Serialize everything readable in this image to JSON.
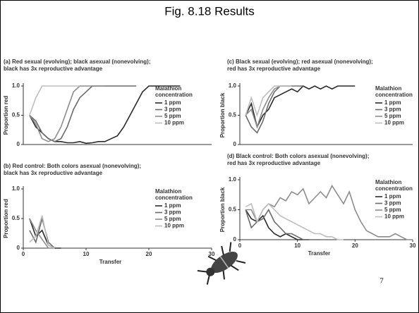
{
  "slide": {
    "title": "Fig. 8.18  Results",
    "page_number": "7"
  },
  "chart_data": [
    {
      "type": "line",
      "title": [
        "(a) Red sexual (evolving); black asexual (nonevolving);",
        "black has 3x reproductive advantage"
      ],
      "y_label": "Proportion red",
      "legend_title": [
        "Malathion",
        "concentration"
      ],
      "xlim": [
        0,
        30
      ],
      "ylim": [
        0,
        1
      ],
      "yticks": [
        0,
        0.5,
        {
          "value": 1,
          "label": "1.0"
        }
      ],
      "x": [
        1,
        2,
        3,
        4,
        5,
        6,
        7,
        8,
        9,
        10,
        11,
        12,
        13,
        14,
        15,
        16,
        17,
        18,
        19,
        20,
        21,
        22,
        23,
        24,
        25,
        26,
        27,
        28,
        29,
        30
      ],
      "series": [
        {
          "name": "1 ppm",
          "color": "#2a2a2a",
          "values": [
            0.5,
            0.3,
            0.2,
            0.1,
            0.05,
            0.05,
            0.03,
            0.03,
            0.05,
            0.02,
            0.03,
            0.05,
            0.05,
            0.1,
            0.15,
            0.3,
            0.5,
            0.7,
            0.9,
            1,
            1,
            1,
            1,
            1,
            1,
            null,
            null,
            null,
            null,
            null
          ]
        },
        {
          "name": "3 ppm",
          "color": "#6a6a6a",
          "values": [
            0.5,
            0.4,
            0.2,
            0.1,
            0.05,
            0.1,
            0.3,
            0.6,
            0.8,
            0.9,
            1,
            1,
            1,
            1,
            1,
            1,
            1,
            1,
            null,
            null,
            null,
            null,
            null,
            null,
            null,
            null,
            null,
            null,
            null,
            null
          ]
        },
        {
          "name": "5 ppm",
          "color": "#8c8c8c",
          "values": [
            0.5,
            0.35,
            0.1,
            0.05,
            0.1,
            0.3,
            0.6,
            0.9,
            1,
            1,
            1,
            1,
            1,
            null,
            null,
            null,
            null,
            null,
            null,
            null,
            null,
            null,
            null,
            null,
            null,
            null,
            null,
            null,
            null,
            null
          ]
        },
        {
          "name": "10 ppm",
          "color": "#bdbdbd",
          "values": [
            0.5,
            0.8,
            1,
            1,
            1,
            1,
            1,
            1,
            1,
            null,
            null,
            null,
            null,
            null,
            null,
            null,
            null,
            null,
            null,
            null,
            null,
            null,
            null,
            null,
            null,
            null,
            null,
            null,
            null,
            null
          ]
        }
      ]
    },
    {
      "type": "line",
      "title": [
        "(b) Red control: Both colors asexual (nonevolving);",
        "black has 3x reproductive advantage"
      ],
      "y_label": "Proportion red",
      "x_label": "Transfer",
      "legend_title": [
        "Malathion",
        "concentration"
      ],
      "xlim": [
        0,
        30
      ],
      "ylim": [
        0,
        1
      ],
      "yticks": [
        0,
        0.5,
        {
          "value": 1,
          "label": "1.0"
        }
      ],
      "xticks": [
        0,
        10,
        20,
        30
      ],
      "x": [
        1,
        2,
        3,
        4,
        5,
        6,
        7,
        8,
        9,
        10,
        11,
        12,
        13,
        14,
        15,
        16,
        17,
        18,
        19,
        20,
        21,
        22,
        23,
        24,
        25,
        26,
        27,
        28,
        29,
        30
      ],
      "series": [
        {
          "name": "1 ppm",
          "color": "#2a2a2a",
          "values": [
            0.5,
            0.2,
            0.3,
            0.05,
            0,
            0,
            null,
            null,
            null,
            null,
            null,
            null,
            null,
            null,
            null,
            null,
            null,
            null,
            null,
            null,
            null,
            null,
            null,
            null,
            null,
            null,
            null,
            null,
            null,
            null
          ]
        },
        {
          "name": "3 ppm",
          "color": "#6a6a6a",
          "values": [
            0.3,
            0.1,
            0.5,
            0.1,
            0,
            null,
            null,
            null,
            null,
            null,
            null,
            null,
            null,
            null,
            null,
            null,
            null,
            null,
            null,
            null,
            null,
            null,
            null,
            null,
            null,
            null,
            null,
            null,
            null,
            null
          ]
        },
        {
          "name": "5 ppm",
          "color": "#8c8c8c",
          "values": [
            0.5,
            0.3,
            0.15,
            0,
            0,
            null,
            null,
            null,
            null,
            null,
            null,
            null,
            null,
            null,
            null,
            null,
            null,
            null,
            null,
            null,
            null,
            null,
            null,
            null,
            null,
            null,
            null,
            null,
            null,
            null
          ]
        },
        {
          "name": "10 ppm",
          "color": "#bdbdbd",
          "values": [
            0.1,
            0.2,
            0.55,
            0.05,
            0,
            null,
            null,
            null,
            null,
            null,
            null,
            null,
            null,
            null,
            null,
            null,
            null,
            null,
            null,
            null,
            null,
            null,
            null,
            null,
            null,
            null,
            null,
            null,
            null,
            null
          ]
        }
      ]
    },
    {
      "type": "line",
      "title": [
        "(c) Black sexual (evolving); red asexual (nonevolving);",
        "red has 3x reproductive advantage"
      ],
      "y_label": "Proportion black",
      "legend_title": [
        "Malathion",
        "concentration"
      ],
      "xlim": [
        0,
        30
      ],
      "ylim": [
        0,
        1
      ],
      "yticks": [
        0,
        0.5,
        {
          "value": 1,
          "label": "1.0"
        }
      ],
      "x": [
        1,
        2,
        3,
        4,
        5,
        6,
        7,
        8,
        9,
        10,
        11,
        12,
        13,
        14,
        15,
        16,
        17,
        18,
        19,
        20,
        21,
        22,
        23,
        24,
        25,
        26,
        27,
        28,
        29,
        30
      ],
      "series": [
        {
          "name": "1 ppm",
          "color": "#2a2a2a",
          "values": [
            0.5,
            0.7,
            0.3,
            0.5,
            0.6,
            0.8,
            0.85,
            0.9,
            0.95,
            0.9,
            1,
            0.95,
            1,
            0.95,
            1,
            0.95,
            1,
            1,
            1,
            1,
            null,
            null,
            null,
            null,
            null,
            null,
            null,
            null,
            null,
            null
          ]
        },
        {
          "name": "3 ppm",
          "color": "#6a6a6a",
          "values": [
            0.5,
            0.3,
            0.2,
            0.4,
            0.7,
            0.9,
            1,
            1,
            1,
            1,
            1,
            null,
            null,
            null,
            null,
            null,
            null,
            null,
            null,
            null,
            null,
            null,
            null,
            null,
            null,
            null,
            null,
            null,
            null,
            null
          ]
        },
        {
          "name": "5 ppm",
          "color": "#8c8c8c",
          "values": [
            0.5,
            0.6,
            0.3,
            0.6,
            0.8,
            0.95,
            1,
            1,
            1,
            1,
            null,
            null,
            null,
            null,
            null,
            null,
            null,
            null,
            null,
            null,
            null,
            null,
            null,
            null,
            null,
            null,
            null,
            null,
            null,
            null
          ]
        },
        {
          "name": "10 ppm",
          "color": "#bdbdbd",
          "values": [
            0.5,
            0.8,
            0.5,
            0.8,
            0.9,
            1,
            1,
            1,
            1,
            null,
            null,
            null,
            null,
            null,
            null,
            null,
            null,
            null,
            null,
            null,
            null,
            null,
            null,
            null,
            null,
            null,
            null,
            null,
            null,
            null
          ]
        }
      ]
    },
    {
      "type": "line",
      "title": [
        "(d) Black control: Both colors asexual (nonevolving);",
        "red has 3x reproductive advantage"
      ],
      "y_label": "Proportion black",
      "x_label": "Transfer",
      "legend_title": [
        "Malathion",
        "concentration"
      ],
      "xlim": [
        0,
        30
      ],
      "ylim": [
        0,
        1
      ],
      "yticks": [
        0,
        0.5,
        {
          "value": 1,
          "label": "1.0"
        }
      ],
      "xticks": [
        0,
        10,
        20,
        30
      ],
      "x": [
        1,
        2,
        3,
        4,
        5,
        6,
        7,
        8,
        9,
        10,
        11,
        12,
        13,
        14,
        15,
        16,
        17,
        18,
        19,
        20,
        21,
        22,
        23,
        24,
        25,
        26,
        27,
        28,
        29,
        30
      ],
      "series": [
        {
          "name": "1 ppm",
          "color": "#2a2a2a",
          "values": [
            0.5,
            0.35,
            0.3,
            0.4,
            0.2,
            0.1,
            0.05,
            0.1,
            0.05,
            0,
            0,
            0,
            null,
            null,
            null,
            null,
            null,
            null,
            null,
            null,
            null,
            null,
            null,
            null,
            null,
            null,
            null,
            null,
            null,
            null
          ]
        },
        {
          "name": "3 ppm",
          "color": "#6a6a6a",
          "values": [
            0.5,
            0.2,
            0.3,
            0.35,
            0.5,
            0.3,
            0.2,
            0.1,
            0.1,
            0.05,
            0,
            0,
            0,
            0,
            null,
            null,
            null,
            null,
            null,
            null,
            null,
            null,
            null,
            null,
            null,
            null,
            null,
            null,
            null,
            null
          ]
        },
        {
          "name": "5 ppm",
          "color": "#8c8c8c",
          "values": [
            0.5,
            0.5,
            0.3,
            0.5,
            0.6,
            0.55,
            0.7,
            0.65,
            0.8,
            0.75,
            0.85,
            0.6,
            0.7,
            0.8,
            0.7,
            0.9,
            0.75,
            0.6,
            0.8,
            0.5,
            0.3,
            0.15,
            0.1,
            0.05,
            0.05,
            0.05,
            0.1,
            0.05,
            0,
            0
          ]
        },
        {
          "name": "10 ppm",
          "color": "#bdbdbd",
          "values": [
            0.55,
            0.6,
            0.3,
            0.5,
            0.6,
            0.5,
            0.4,
            0.35,
            0.3,
            0.25,
            0.2,
            0.15,
            0.1,
            0.1,
            0.05,
            0.05,
            0,
            0,
            null,
            null,
            null,
            null,
            null,
            null,
            null,
            null,
            null,
            null,
            null,
            null
          ]
        }
      ]
    }
  ]
}
